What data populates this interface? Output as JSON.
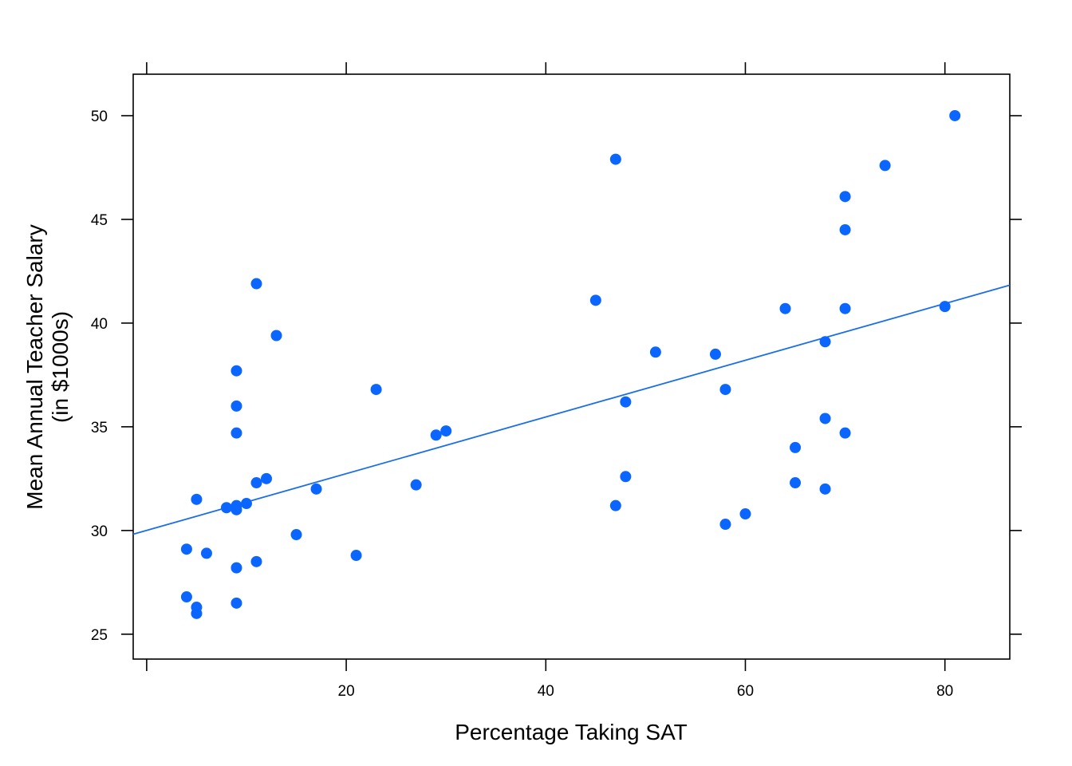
{
  "chart_data": {
    "type": "scatter",
    "xlabel": "Percentage Taking SAT",
    "ylabel_lines": [
      "Mean Annual Teacher Salary",
      "(in $1000s)"
    ],
    "xlim": [
      -1.35,
      86.5
    ],
    "ylim": [
      23.8,
      52.0
    ],
    "x_ticks": [
      0,
      20,
      40,
      60,
      80
    ],
    "x_tick_labels": [
      "",
      "20",
      "40",
      "60",
      "80"
    ],
    "y_ticks": [
      25,
      30,
      35,
      40,
      45,
      50
    ],
    "y_tick_labels": [
      "25",
      "30",
      "35",
      "40",
      "45",
      "50"
    ],
    "grid": false,
    "point_color": "#0a66ff",
    "line_color": "#1a6ee8",
    "regression_line": {
      "x": [
        -1.35,
        86.5
      ],
      "y": [
        29.82,
        41.83
      ]
    },
    "points": [
      {
        "x": 4,
        "y": 29.1
      },
      {
        "x": 4,
        "y": 26.8
      },
      {
        "x": 5,
        "y": 31.5
      },
      {
        "x": 5,
        "y": 26.3
      },
      {
        "x": 5,
        "y": 26.0
      },
      {
        "x": 6,
        "y": 28.9
      },
      {
        "x": 8,
        "y": 31.1
      },
      {
        "x": 9,
        "y": 37.7
      },
      {
        "x": 9,
        "y": 36.0
      },
      {
        "x": 9,
        "y": 34.7
      },
      {
        "x": 9,
        "y": 31.2
      },
      {
        "x": 9,
        "y": 31.0
      },
      {
        "x": 9,
        "y": 28.2
      },
      {
        "x": 9,
        "y": 26.5
      },
      {
        "x": 10,
        "y": 31.3
      },
      {
        "x": 11,
        "y": 41.9
      },
      {
        "x": 11,
        "y": 32.3
      },
      {
        "x": 11,
        "y": 28.5
      },
      {
        "x": 12,
        "y": 32.5
      },
      {
        "x": 13,
        "y": 39.4
      },
      {
        "x": 15,
        "y": 29.8
      },
      {
        "x": 17,
        "y": 32.0
      },
      {
        "x": 21,
        "y": 28.8
      },
      {
        "x": 23,
        "y": 36.8
      },
      {
        "x": 27,
        "y": 32.2
      },
      {
        "x": 29,
        "y": 34.6
      },
      {
        "x": 30,
        "y": 34.8
      },
      {
        "x": 45,
        "y": 41.1
      },
      {
        "x": 47,
        "y": 47.9
      },
      {
        "x": 47,
        "y": 31.2
      },
      {
        "x": 48,
        "y": 36.2
      },
      {
        "x": 48,
        "y": 32.6
      },
      {
        "x": 51,
        "y": 38.6
      },
      {
        "x": 57,
        "y": 38.5
      },
      {
        "x": 58,
        "y": 36.8
      },
      {
        "x": 58,
        "y": 30.3
      },
      {
        "x": 60,
        "y": 30.8
      },
      {
        "x": 64,
        "y": 40.7
      },
      {
        "x": 65,
        "y": 34.0
      },
      {
        "x": 65,
        "y": 32.3
      },
      {
        "x": 68,
        "y": 39.1
      },
      {
        "x": 68,
        "y": 35.4
      },
      {
        "x": 68,
        "y": 32.0
      },
      {
        "x": 70,
        "y": 46.1
      },
      {
        "x": 70,
        "y": 44.5
      },
      {
        "x": 70,
        "y": 40.7
      },
      {
        "x": 70,
        "y": 34.7
      },
      {
        "x": 74,
        "y": 47.6
      },
      {
        "x": 80,
        "y": 40.8
      },
      {
        "x": 81,
        "y": 50.0
      }
    ]
  }
}
